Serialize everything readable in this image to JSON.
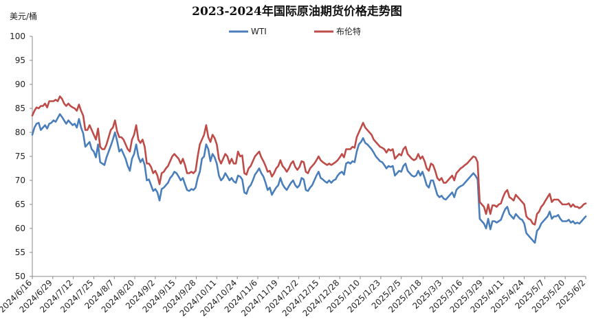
{
  "chart_data": {
    "type": "line",
    "title": "2023-2024年国际原油期货价格走势图",
    "ylabel": "美元/桶",
    "ylim": [
      50,
      100
    ],
    "yticks": [
      50,
      55,
      60,
      65,
      70,
      75,
      80,
      85,
      90,
      95,
      100
    ],
    "x_tick_labels": [
      "2024/6/16",
      "2024/6/29",
      "2024/7/12",
      "2024/7/25",
      "2024/8/7",
      "2024/8/20",
      "2024/9/2",
      "2024/9/15",
      "2024/9/28",
      "2024/10/11",
      "2024/10/24",
      "2024/11/6",
      "2024/11/19",
      "2024/12/2",
      "2024/12/15",
      "2024/12/28",
      "2025/1/10",
      "2025/1/23",
      "2025/2/5",
      "2025/2/18",
      "2025/3/3",
      "2025/3/16",
      "2025/3/29",
      "2025/4/11",
      "2025/4/24",
      "2025/5/7",
      "2025/5/20",
      "2025/6/2"
    ],
    "grid": false,
    "legend_position": "top-center",
    "series": [
      {
        "name": "WTI",
        "color": "#4a7ebb",
        "values": [
          79.5,
          81.0,
          81.8,
          82.0,
          80.5,
          81.0,
          81.5,
          80.8,
          81.8,
          82.0,
          82.5,
          82.2,
          83.0,
          83.8,
          83.2,
          82.5,
          81.8,
          82.5,
          82.0,
          81.5,
          81.8,
          81.0,
          82.8,
          81.0,
          79.8,
          77.0,
          77.5,
          78.0,
          76.5,
          76.0,
          74.8,
          77.5,
          73.8,
          73.5,
          73.2,
          74.8,
          76.0,
          77.2,
          78.5,
          80.0,
          78.2,
          76.0,
          76.5,
          75.5,
          74.5,
          73.0,
          72.0,
          74.5,
          75.5,
          77.5,
          75.0,
          73.8,
          74.5,
          73.2,
          70.0,
          70.2,
          69.0,
          67.8,
          68.2,
          67.5,
          65.8,
          68.2,
          68.5,
          69.0,
          69.5,
          70.5,
          71.0,
          71.8,
          71.5,
          70.8,
          70.0,
          70.5,
          69.2,
          68.0,
          67.8,
          68.2,
          68.0,
          68.5,
          70.5,
          71.8,
          74.5,
          75.0,
          77.5,
          76.5,
          74.0,
          75.5,
          74.8,
          73.5,
          71.0,
          70.0,
          70.5,
          71.5,
          70.8,
          70.0,
          70.5,
          69.8,
          69.5,
          71.0,
          70.8,
          70.2,
          67.5,
          67.2,
          68.5,
          69.0,
          70.0,
          71.2,
          71.8,
          72.5,
          71.5,
          70.8,
          69.5,
          68.0,
          68.5,
          67.0,
          67.8,
          68.5,
          69.0,
          70.5,
          69.2,
          68.5,
          68.0,
          68.8,
          69.5,
          70.0,
          69.0,
          68.5,
          69.0,
          70.5,
          70.2,
          68.0,
          67.8,
          68.5,
          69.0,
          70.0,
          71.0,
          71.8,
          70.5,
          70.2,
          69.8,
          69.5,
          70.0,
          69.5,
          70.0,
          70.2,
          71.0,
          71.5,
          71.8,
          71.2,
          73.5,
          73.8,
          73.5,
          74.0,
          73.8,
          76.0,
          77.5,
          78.0,
          78.8,
          77.8,
          77.5,
          77.0,
          76.5,
          75.8,
          75.0,
          74.5,
          74.0,
          73.8,
          73.2,
          72.5,
          73.0,
          72.8,
          73.0,
          71.0,
          71.5,
          72.0,
          71.8,
          73.0,
          73.5,
          72.0,
          71.5,
          71.0,
          70.8,
          71.0,
          72.0,
          71.0,
          71.8,
          70.5,
          69.0,
          68.5,
          70.0,
          70.0,
          68.5,
          67.0,
          66.5,
          66.8,
          66.2,
          66.0,
          66.5,
          67.0,
          67.5,
          66.5,
          68.0,
          68.5,
          68.8,
          69.0,
          69.5,
          70.0,
          70.5,
          71.0,
          71.5,
          71.0,
          70.2,
          62.0,
          61.5,
          61.0,
          60.0,
          62.0,
          59.8,
          61.5,
          61.5,
          61.2,
          61.5,
          61.8,
          63.0,
          64.0,
          64.5,
          63.0,
          62.5,
          62.0,
          63.0,
          62.5,
          62.0,
          61.8,
          61.0,
          59.0,
          58.5,
          58.0,
          57.5,
          57.0,
          59.5,
          60.0,
          61.0,
          61.5,
          62.0,
          62.5,
          63.5,
          62.0,
          62.5,
          62.5,
          62.8,
          62.0,
          61.5,
          61.5,
          61.5,
          61.8,
          61.2,
          61.5,
          61.0,
          61.2,
          61.0,
          61.5,
          62.0,
          62.5
        ]
      },
      {
        "name": "布伦特",
        "color": "#be4b48",
        "values": [
          83.5,
          84.5,
          85.2,
          85.0,
          85.5,
          85.5,
          86.0,
          85.2,
          86.5,
          86.5,
          86.5,
          86.8,
          86.5,
          87.5,
          87.0,
          86.0,
          85.5,
          86.0,
          85.5,
          85.2,
          85.0,
          84.5,
          85.8,
          84.5,
          83.5,
          80.5,
          80.5,
          81.5,
          80.5,
          79.5,
          78.5,
          80.8,
          77.0,
          76.5,
          76.5,
          77.5,
          79.0,
          80.5,
          81.0,
          82.5,
          80.2,
          79.0,
          79.0,
          78.5,
          77.5,
          76.5,
          76.0,
          78.5,
          79.5,
          81.5,
          78.5,
          77.8,
          78.5,
          77.0,
          73.5,
          73.5,
          72.8,
          71.5,
          72.0,
          71.0,
          69.2,
          71.5,
          71.8,
          72.5,
          73.0,
          74.0,
          75.0,
          75.5,
          75.0,
          74.5,
          73.5,
          74.5,
          73.2,
          71.5,
          71.5,
          71.8,
          71.5,
          72.0,
          75.0,
          77.5,
          78.5,
          79.5,
          81.5,
          79.0,
          78.0,
          79.5,
          78.8,
          77.5,
          74.5,
          73.5,
          74.5,
          75.5,
          75.0,
          73.5,
          74.5,
          73.5,
          73.5,
          76.0,
          75.0,
          75.2,
          71.5,
          71.2,
          72.5,
          73.0,
          74.0,
          75.0,
          75.5,
          76.0,
          74.8,
          74.0,
          73.0,
          71.8,
          72.0,
          70.8,
          71.5,
          72.5,
          73.0,
          74.2,
          73.0,
          72.5,
          71.8,
          72.5,
          73.5,
          74.0,
          72.8,
          72.2,
          72.8,
          74.0,
          73.8,
          71.8,
          71.5,
          72.5,
          73.0,
          73.5,
          74.2,
          75.0,
          74.2,
          73.8,
          73.5,
          73.2,
          73.5,
          73.2,
          73.5,
          73.8,
          74.2,
          74.8,
          75.5,
          74.8,
          76.5,
          76.5,
          76.5,
          77.0,
          76.8,
          79.0,
          80.0,
          81.0,
          82.0,
          81.0,
          80.5,
          80.0,
          79.5,
          78.5,
          78.0,
          77.5,
          77.0,
          76.8,
          76.5,
          75.8,
          76.5,
          76.2,
          76.5,
          74.5,
          75.0,
          75.5,
          75.2,
          76.5,
          77.0,
          75.5,
          75.0,
          74.5,
          74.2,
          74.5,
          75.5,
          74.5,
          75.0,
          74.0,
          72.5,
          72.0,
          73.5,
          73.2,
          72.0,
          70.5,
          70.0,
          70.5,
          69.5,
          69.5,
          70.0,
          70.5,
          71.0,
          70.0,
          71.5,
          72.0,
          72.5,
          72.8,
          73.2,
          73.5,
          74.0,
          74.5,
          75.0,
          74.8,
          73.8,
          65.5,
          65.0,
          64.5,
          63.0,
          65.0,
          63.0,
          64.8,
          64.8,
          64.5,
          65.0,
          65.2,
          66.5,
          67.5,
          68.0,
          66.5,
          66.2,
          65.8,
          67.0,
          66.5,
          66.0,
          65.5,
          65.0,
          62.5,
          62.0,
          61.8,
          61.0,
          60.8,
          63.0,
          63.5,
          64.5,
          65.0,
          65.8,
          66.5,
          67.2,
          65.5,
          66.0,
          66.0,
          66.0,
          65.5,
          65.0,
          65.0,
          65.0,
          65.2,
          64.5,
          65.0,
          64.5,
          64.5,
          64.2,
          64.5,
          65.0,
          65.2
        ]
      }
    ]
  }
}
